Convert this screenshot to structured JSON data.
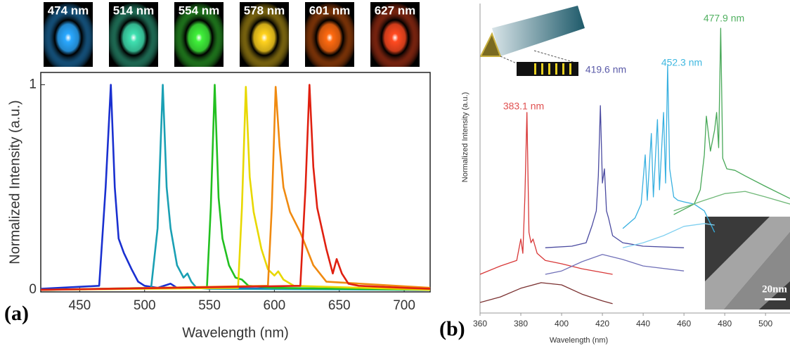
{
  "chart_data": [
    {
      "type": "line",
      "panel_label": "(a)",
      "xlabel": "Wavelength (nm)",
      "ylabel": "Normalized Intensity (a.u.)",
      "xlim": [
        420,
        720
      ],
      "xticks": [
        450,
        500,
        550,
        600,
        650,
        700
      ],
      "ylim": [
        -0.01,
        1.06
      ],
      "yticks": [
        0,
        1
      ],
      "images": [
        {
          "label": "474 nm",
          "color": "#2aa8ff"
        },
        {
          "label": "514 nm",
          "color": "#3fe0b0"
        },
        {
          "label": "554 nm",
          "color": "#3ff03a"
        },
        {
          "label": "578 nm",
          "color": "#ffd21e"
        },
        {
          "label": "601 nm",
          "color": "#ff6a10"
        },
        {
          "label": "627 nm",
          "color": "#ff4a20"
        }
      ],
      "series": [
        {
          "color": "#1a30d0",
          "x": [
            420,
            465,
            470,
            474,
            477,
            480,
            484,
            490,
            495,
            500,
            510,
            520,
            525,
            720
          ],
          "values": [
            0.005,
            0.02,
            0.5,
            1,
            0.5,
            0.25,
            0.18,
            0.1,
            0.04,
            0.02,
            0.01,
            0.03,
            0.01,
            0
          ]
        },
        {
          "color": "#1aa0b4",
          "x": [
            420,
            505,
            510,
            514,
            517,
            520,
            525,
            530,
            533,
            536,
            540,
            550,
            720
          ],
          "values": [
            0,
            0.01,
            0.3,
            1,
            0.5,
            0.3,
            0.12,
            0.06,
            0.08,
            0.04,
            0.01,
            0.005,
            0
          ]
        },
        {
          "color": "#22c020",
          "x": [
            420,
            548,
            551,
            554,
            557,
            560,
            565,
            570,
            575,
            580,
            600,
            720
          ],
          "values": [
            0,
            0.01,
            0.4,
            1,
            0.45,
            0.25,
            0.12,
            0.06,
            0.05,
            0.02,
            0.01,
            0
          ]
        },
        {
          "color": "#e8d800",
          "x": [
            420,
            572,
            575,
            578,
            581,
            584,
            590,
            595,
            600,
            603,
            607,
            615,
            720
          ],
          "values": [
            0,
            0.01,
            0.4,
            0.99,
            0.55,
            0.38,
            0.2,
            0.1,
            0.07,
            0.09,
            0.05,
            0.02,
            0
          ]
        },
        {
          "color": "#f08a10",
          "x": [
            420,
            595,
            598,
            601,
            604,
            607,
            612,
            620,
            630,
            640,
            720
          ],
          "values": [
            0,
            0.02,
            0.4,
            0.99,
            0.7,
            0.5,
            0.38,
            0.28,
            0.12,
            0.04,
            0.01
          ]
        },
        {
          "color": "#e02010",
          "x": [
            420,
            620,
            624,
            627,
            630,
            633,
            640,
            645,
            648,
            652,
            657,
            665,
            700,
            720
          ],
          "values": [
            0,
            0.02,
            0.5,
            1,
            0.6,
            0.4,
            0.2,
            0.08,
            0.15,
            0.08,
            0.03,
            0.02,
            0.01,
            0.005
          ]
        }
      ]
    },
    {
      "type": "line",
      "panel_label": "(b)",
      "xlabel": "Wavelength (nm)",
      "ylabel": "Normalized Intensity (a.u.)",
      "xlim": [
        360,
        512
      ],
      "xticks": [
        360,
        380,
        400,
        420,
        440,
        460,
        480,
        500
      ],
      "ylim": [
        0,
        1
      ],
      "scale_bar": "20nm",
      "annotations": [
        {
          "text": "383.1 nm",
          "color": "#e05050"
        },
        {
          "text": "419.6 nm",
          "color": "#5a5aa8"
        },
        {
          "text": "452.3 nm",
          "color": "#40b8e0"
        },
        {
          "text": "477.9 nm",
          "color": "#50b060"
        }
      ],
      "series": [
        {
          "color": "#d83838",
          "x": [
            360,
            370,
            378,
            380,
            381,
            382,
            383,
            384,
            385,
            386,
            388,
            392,
            400,
            410,
            425
          ],
          "values": [
            0.125,
            0.152,
            0.17,
            0.239,
            0.193,
            0.375,
            0.648,
            0.261,
            0.227,
            0.239,
            0.193,
            0.17,
            0.159,
            0.143,
            0.125
          ]
        },
        {
          "color": "#7a3030",
          "x": [
            360,
            370,
            380,
            390,
            400,
            410,
            420,
            425
          ],
          "values": [
            0.034,
            0.052,
            0.08,
            0.098,
            0.091,
            0.061,
            0.039,
            0.03
          ]
        },
        {
          "color": "#4a4aa0",
          "x": [
            392,
            405,
            412,
            415,
            417,
            418,
            419,
            420,
            421,
            422,
            423,
            425,
            430,
            440,
            460
          ],
          "values": [
            0.211,
            0.216,
            0.227,
            0.284,
            0.33,
            0.443,
            0.67,
            0.42,
            0.466,
            0.33,
            0.307,
            0.25,
            0.227,
            0.216,
            0.211
          ]
        },
        {
          "color": "#7070b8",
          "x": [
            392,
            400,
            410,
            420,
            430,
            440,
            460
          ],
          "values": [
            0.125,
            0.136,
            0.166,
            0.189,
            0.173,
            0.152,
            0.136
          ]
        },
        {
          "color": "#38b0e0",
          "x": [
            430,
            436,
            439,
            441,
            442,
            444,
            445,
            447,
            448,
            450,
            451,
            452,
            453,
            455,
            457,
            460,
            465,
            470,
            475
          ],
          "values": [
            0.273,
            0.307,
            0.352,
            0.511,
            0.364,
            0.58,
            0.375,
            0.625,
            0.398,
            0.648,
            0.42,
            0.8,
            0.466,
            0.375,
            0.364,
            0.359,
            0.352,
            0.33,
            0.261
          ]
        },
        {
          "color": "#80d0f0",
          "x": [
            430,
            440,
            450,
            460,
            470,
            475
          ],
          "values": [
            0.211,
            0.227,
            0.25,
            0.28,
            0.289,
            0.284
          ]
        },
        {
          "color": "#48a858",
          "x": [
            455,
            465,
            468,
            470,
            471,
            473,
            475,
            476,
            477,
            478,
            479,
            481,
            485,
            490,
            500,
            512
          ],
          "values": [
            0.318,
            0.352,
            0.398,
            0.511,
            0.636,
            0.523,
            0.591,
            0.648,
            0.534,
            0.92,
            0.5,
            0.466,
            0.461,
            0.443,
            0.409,
            0.37
          ]
        },
        {
          "color": "#70b878",
          "x": [
            455,
            470,
            480,
            490,
            500,
            512
          ],
          "values": [
            0.33,
            0.364,
            0.386,
            0.393,
            0.375,
            0.352
          ]
        }
      ]
    }
  ]
}
